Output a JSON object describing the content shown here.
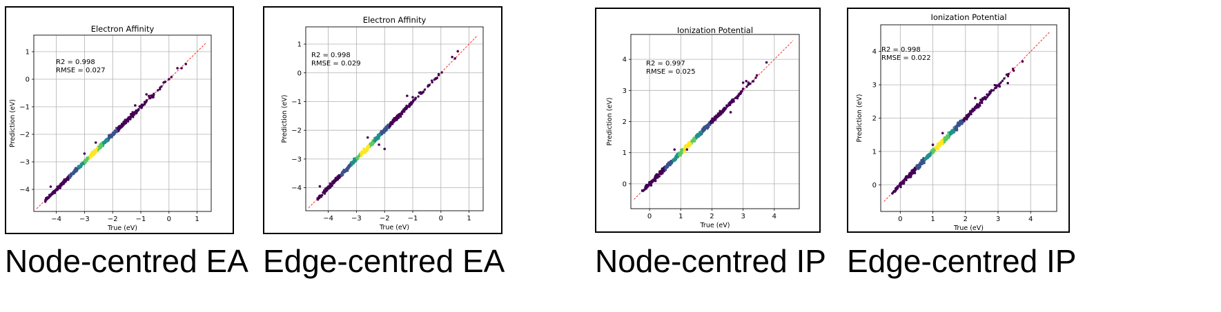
{
  "chart_data": [
    {
      "type": "scatter",
      "title": "Electron Affinity",
      "xlabel": "True (eV)",
      "ylabel": "Prediction (eV)",
      "xlim": [
        -4.8,
        1.5
      ],
      "ylim": [
        -4.8,
        1.6
      ],
      "xticks": [
        -4,
        -3,
        -2,
        -1,
        0,
        1
      ],
      "yticks": [
        -4,
        -3,
        -2,
        -1,
        0,
        1
      ],
      "grid": true,
      "annotation": [
        "R2 = 0.998",
        "RMSE = 0.027"
      ],
      "diagonal": [
        -4.7,
        1.3
      ],
      "seed": 11,
      "outliers": [
        [
          -4.2,
          -3.9
        ],
        [
          -3.0,
          -2.7
        ],
        [
          -2.6,
          -2.3
        ],
        [
          -1.2,
          -0.95
        ],
        [
          -0.8,
          -0.55
        ],
        [
          0.3,
          0.4
        ],
        [
          0.6,
          0.55
        ],
        [
          0.45,
          0.4
        ],
        [
          0.0,
          0.0
        ]
      ]
    },
    {
      "type": "scatter",
      "title": "Electron Affinity",
      "xlabel": "True (eV)",
      "ylabel": "Prediction (eV)",
      "xlim": [
        -4.8,
        1.5
      ],
      "ylim": [
        -4.8,
        1.6
      ],
      "xticks": [
        -4,
        -3,
        -2,
        -1,
        0,
        1
      ],
      "yticks": [
        -4,
        -3,
        -2,
        -1,
        0,
        1
      ],
      "grid": true,
      "annotation": [
        "R2 = 0.998",
        "RMSE = 0.029"
      ],
      "diagonal": [
        -4.7,
        1.3
      ],
      "seed": 23,
      "outliers": [
        [
          -4.3,
          -3.95
        ],
        [
          -2.6,
          -2.25
        ],
        [
          -2.2,
          -2.5
        ],
        [
          -2.0,
          -2.65
        ],
        [
          -1.2,
          -0.8
        ],
        [
          -1.0,
          -0.85
        ],
        [
          0.4,
          0.55
        ],
        [
          0.5,
          0.5
        ],
        [
          0.6,
          0.75
        ]
      ]
    },
    {
      "type": "scatter",
      "title": "Ionization Potential",
      "xlabel": "True (eV)",
      "ylabel": "Prediction (eV)",
      "xlim": [
        -0.6,
        4.8
      ],
      "ylim": [
        -0.8,
        4.8
      ],
      "xticks": [
        0,
        1,
        2,
        3,
        4
      ],
      "yticks": [
        0,
        1,
        2,
        3,
        4
      ],
      "grid": true,
      "annotation": [
        "R2 = 0.997",
        "RMSE = 0.025"
      ],
      "diagonal": [
        -0.5,
        4.6
      ],
      "seed": 37,
      "outliers": [
        [
          0.05,
          -0.05
        ],
        [
          0.8,
          1.1
        ],
        [
          1.2,
          1.1
        ],
        [
          2.6,
          2.3
        ],
        [
          3.1,
          3.3
        ],
        [
          3.0,
          3.25
        ],
        [
          3.75,
          3.9
        ]
      ]
    },
    {
      "type": "scatter",
      "title": "Ionization Potential",
      "xlabel": "True (eV)",
      "ylabel": "Prediction (eV)",
      "xlim": [
        -0.6,
        4.8
      ],
      "ylim": [
        -0.8,
        4.8
      ],
      "xticks": [
        0,
        1,
        2,
        3,
        4
      ],
      "yticks": [
        0,
        1,
        2,
        3,
        4
      ],
      "grid": true,
      "annotation": [
        "R2 = 0.998",
        "RMSE = 0.022"
      ],
      "diagonal": [
        -0.5,
        4.6
      ],
      "seed": 53,
      "outliers": [
        [
          0.0,
          0.05
        ],
        [
          1.0,
          1.2
        ],
        [
          1.3,
          1.55
        ],
        [
          2.3,
          2.6
        ],
        [
          3.05,
          2.95
        ],
        [
          3.3,
          3.05
        ],
        [
          3.75,
          3.7
        ]
      ]
    }
  ],
  "captions": [
    "Node-centred EA",
    "Edge-centred EA",
    "Node-centred IP",
    "Edge-centred IP"
  ],
  "colors": {
    "diagonal": "#ff2a2a",
    "grid": "#b0b0b0",
    "density": [
      "#440154",
      "#3b528b",
      "#21918c",
      "#5ec962",
      "#fde725"
    ]
  }
}
